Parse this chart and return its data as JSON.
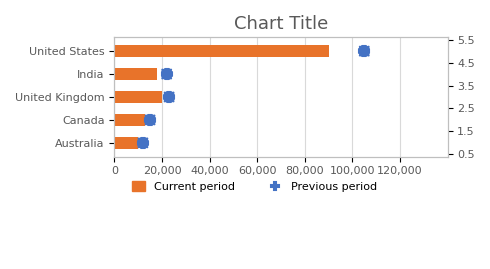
{
  "title": "Chart Title",
  "categories": [
    "Australia",
    "Canada",
    "United Kingdom",
    "India",
    "United States"
  ],
  "bar_values": [
    10000,
    13000,
    20000,
    18000,
    90000
  ],
  "bar_color": "#E8732A",
  "scatter_color": "#4472C4",
  "scatter_x_values": [
    12000,
    15000,
    23000,
    22000,
    105000
  ],
  "scatter_y_offsets": [
    0,
    0,
    0,
    0,
    0
  ],
  "xlim": [
    0,
    140000
  ],
  "xticks": [
    0,
    20000,
    40000,
    60000,
    80000,
    100000,
    120000
  ],
  "xticklabels": [
    "0",
    "20,000",
    "40,000",
    "60,000",
    "80,000",
    "100,000",
    "120,000"
  ],
  "secondary_yticks": [
    0.5,
    1.5,
    2.5,
    3.5,
    4.5,
    5.5
  ],
  "secondary_yticklabels": [
    "0.5",
    "1.5",
    "2.5",
    "3.5",
    "4.5",
    "5.5"
  ],
  "legend_bar_label": "Current period",
  "legend_scatter_label": "Previous period",
  "bg_color": "#FFFFFF",
  "grid_color": "#D9D9D9",
  "border_color": "#BFBFBF",
  "title_fontsize": 13,
  "tick_fontsize": 8,
  "label_color": "#595959",
  "bar_height": 0.5
}
